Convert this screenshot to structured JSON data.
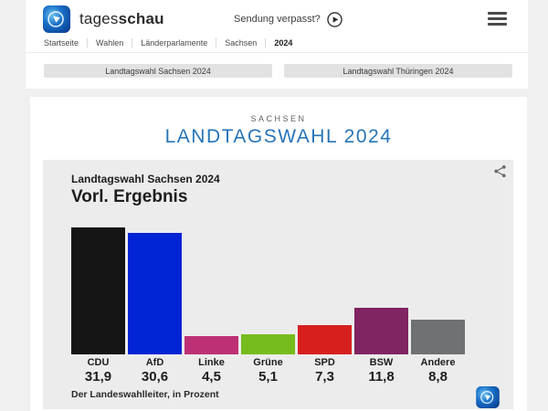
{
  "header": {
    "brand": {
      "light": "tages",
      "bold": "schau"
    },
    "sendung_verpasst": "Sendung verpasst?",
    "breadcrumb": [
      "Startseite",
      "Wahlen",
      "Länderparlamente",
      "Sachsen",
      "2024"
    ]
  },
  "tabs": [
    {
      "label": "Landtagswahl Sachsen 2024"
    },
    {
      "label": "Landtagswahl Thüringen 2024"
    }
  ],
  "page": {
    "kicker": "SACHSEN",
    "title": "LANDTAGSWAHL 2024",
    "title_color": "#2774b8"
  },
  "chart_data": {
    "type": "bar",
    "title": "Landtagswahl Sachsen 2024",
    "subtitle": "Vorl. Ergebnis",
    "categories": [
      "CDU",
      "AfD",
      "Linke",
      "Grüne",
      "SPD",
      "BSW",
      "Andere"
    ],
    "values": [
      31.9,
      30.6,
      4.5,
      5.1,
      7.3,
      11.8,
      8.8
    ],
    "value_labels": [
      "31,9",
      "30,6",
      "4,5",
      "5,1",
      "7,3",
      "11,8",
      "8,8"
    ],
    "colors": [
      "#141414",
      "#0324d5",
      "#bd3075",
      "#77bc1f",
      "#d71f1f",
      "#812462",
      "#707173"
    ],
    "unit": "Prozent",
    "source": "Der Landeswahlleiter, in Prozent",
    "xlabel": "",
    "ylabel": "",
    "ylim": [
      0,
      32
    ],
    "grid": false,
    "legend": "none"
  }
}
